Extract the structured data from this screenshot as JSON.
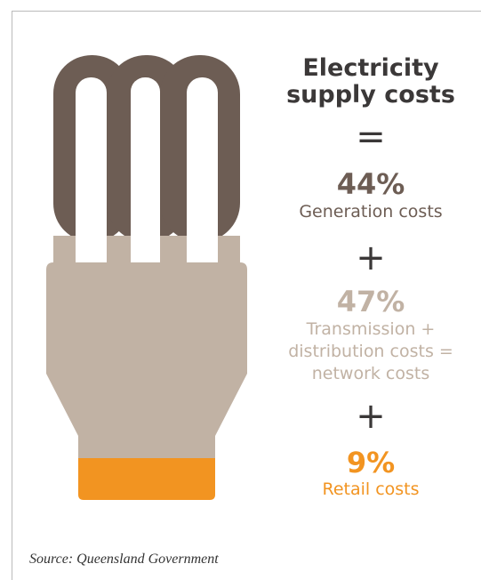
{
  "title": "Electricity supply costs",
  "equals": "=",
  "items": [
    {
      "value": "44%",
      "label": "Generation costs"
    },
    {
      "operator": "+",
      "value": "47%",
      "label": "Transmission + distribution costs = network costs"
    },
    {
      "operator": "+",
      "value": "9%",
      "label": "Retail costs"
    }
  ],
  "source": "Source: Queensland Government"
}
